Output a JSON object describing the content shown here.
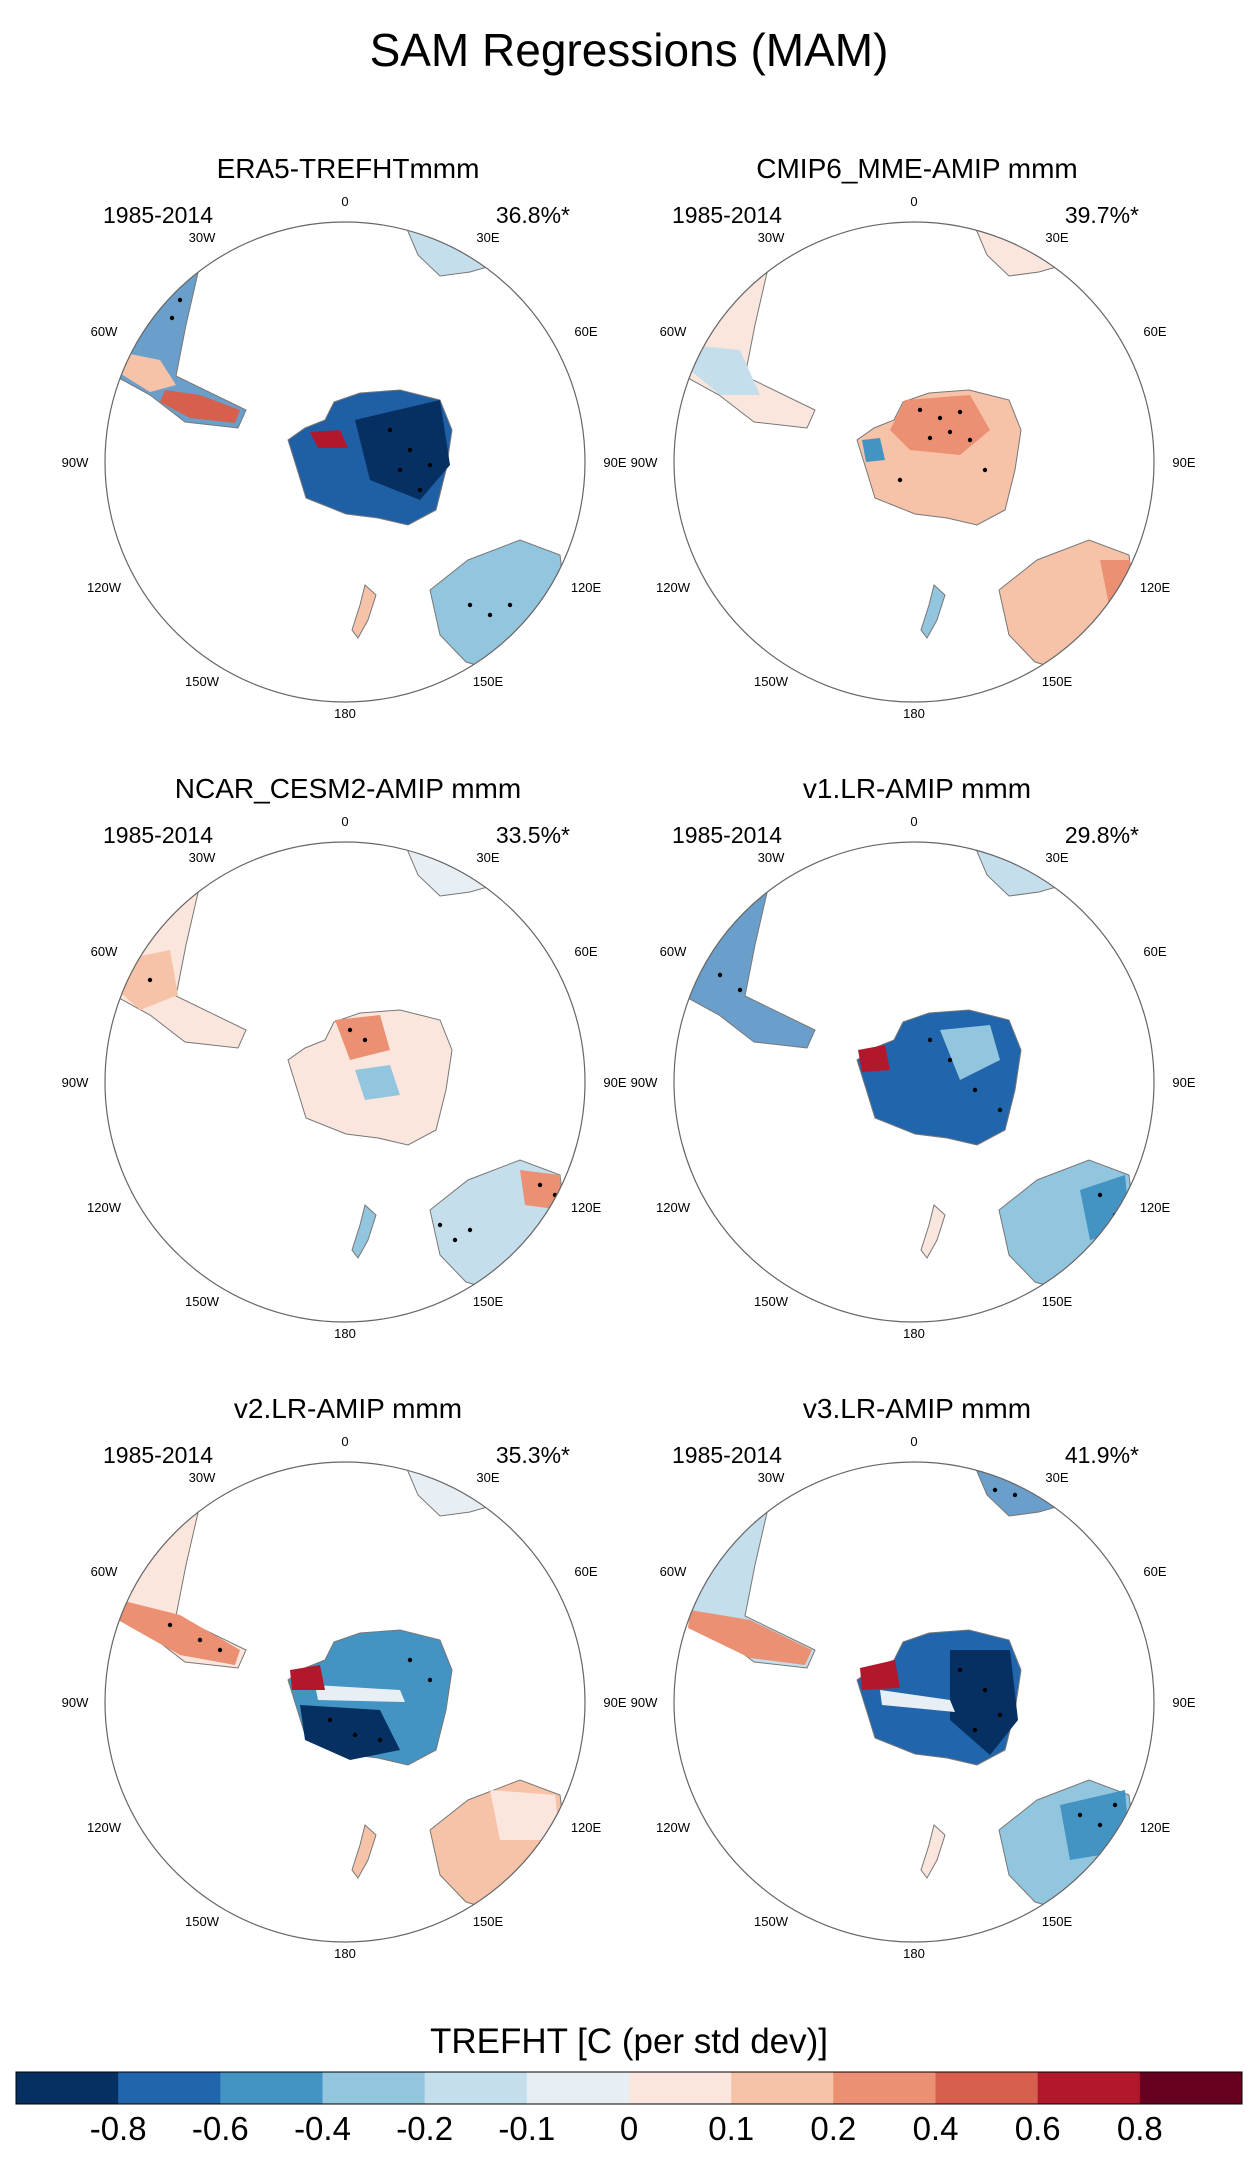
{
  "title": "SAM Regressions (MAM)",
  "period": "1985-2014",
  "longitude_labels": [
    "0",
    "30E",
    "60E",
    "90E",
    "120E",
    "150E",
    "180",
    "150W",
    "120W",
    "90W",
    "60W",
    "30W"
  ],
  "panels": [
    {
      "title": "ERA5-TREFHTmmm",
      "period": "1985-2014",
      "percent": "36.8%*"
    },
    {
      "title": "CMIP6_MME-AMIP  mmm",
      "period": "1985-2014",
      "percent": "39.7%*"
    },
    {
      "title": "NCAR_CESM2-AMIP  mmm",
      "period": "1985-2014",
      "percent": "33.5%*"
    },
    {
      "title": "v1.LR-AMIP  mmm",
      "period": "1985-2014",
      "percent": "29.8%*"
    },
    {
      "title": "v2.LR-AMIP  mmm",
      "period": "1985-2014",
      "percent": "35.3%*"
    },
    {
      "title": "v3.LR-AMIP  mmm",
      "period": "1985-2014",
      "percent": "41.9%*"
    }
  ],
  "colorbar": {
    "title": "TREFHT [C (per std dev)]",
    "tick_labels": [
      "-0.8",
      "-0.6",
      "-0.4",
      "-0.2",
      "-0.1",
      "0",
      "0.1",
      "0.2",
      "0.4",
      "0.6",
      "0.8"
    ],
    "colors": [
      "#053061",
      "#2166ac",
      "#4393c3",
      "#92c5de",
      "#c4deec",
      "#e8eff4",
      "#fbe6de",
      "#f7c3a8",
      "#eb9073",
      "#d6604d",
      "#b2182b",
      "#67001f"
    ]
  }
}
